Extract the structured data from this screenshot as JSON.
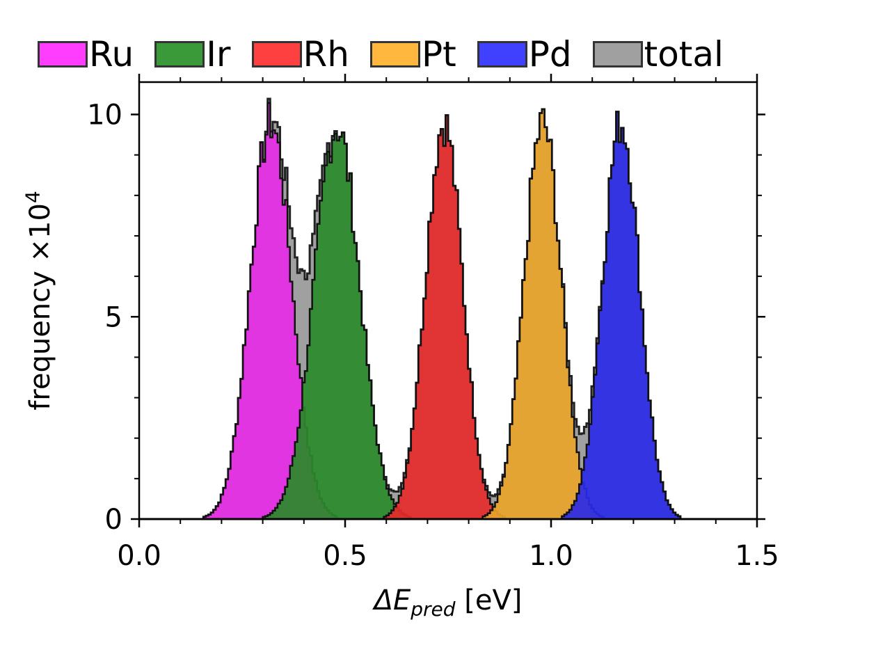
{
  "chart_data": {
    "type": "histogram",
    "xlabel_prefix": "ΔE",
    "xlabel_subscript": "pred",
    "xlabel_unit": " [eV]",
    "ylabel_text": "frequency ×10",
    "ylabel_exponent": "4",
    "xlim": [
      0.0,
      1.5
    ],
    "ylim": [
      0,
      10.8
    ],
    "xticks": [
      0.0,
      0.5,
      1.0,
      1.5
    ],
    "xtick_labels": [
      "0.0",
      "0.5",
      "1.0",
      "1.5"
    ],
    "yticks": [
      0,
      5,
      10
    ],
    "ytick_labels": [
      "0",
      "5",
      "10"
    ],
    "legend_position": "top, above plot",
    "series": [
      {
        "name": "Ru",
        "color": "#ff00ff",
        "fill": "#e52be5",
        "mean": 0.32,
        "std": 0.05,
        "peak": 9.8
      },
      {
        "name": "Ir",
        "color": "#228b22",
        "fill": "#2a8a2a",
        "mean": 0.48,
        "std": 0.055,
        "peak": 9.7
      },
      {
        "name": "Rh",
        "color": "#ff2020",
        "fill": "#e62a2a",
        "mean": 0.74,
        "std": 0.045,
        "peak": 9.8
      },
      {
        "name": "Pt",
        "color": "#ffa500",
        "fill": "#e8a42a",
        "mean": 0.98,
        "std": 0.045,
        "peak": 9.8
      },
      {
        "name": "Pd",
        "color": "#0000ff",
        "fill": "#2a2ae8",
        "mean": 1.17,
        "std": 0.045,
        "peak": 9.8
      },
      {
        "name": "total",
        "color": "#808080",
        "fill": "#a0a0a0",
        "mean": null,
        "std": null,
        "peak": null
      }
    ]
  }
}
